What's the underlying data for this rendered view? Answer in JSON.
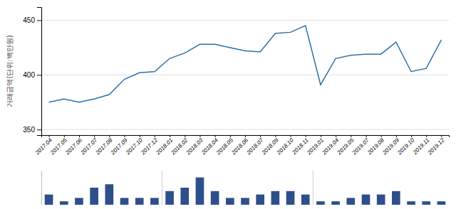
{
  "chart_data": [
    {
      "type": "line",
      "categories": [
        "2017.04",
        "2017.05",
        "2017.06",
        "2017.07",
        "2017.08",
        "2017.09",
        "2017.10",
        "2017.12",
        "2018.01",
        "2018.02",
        "2018.03",
        "2018.04",
        "2018.05",
        "2018.06",
        "2018.07",
        "2018.09",
        "2018.10",
        "2018.11",
        "2019.01",
        "2019.04",
        "2019.05",
        "2019.07",
        "2019.08",
        "2019.09",
        "2019.10",
        "2019.11",
        "2019.12"
      ],
      "values": [
        375,
        378,
        375,
        378,
        382,
        396,
        402,
        403,
        415,
        420,
        428,
        428,
        425,
        422,
        421,
        438,
        439,
        445,
        391,
        415,
        418,
        419,
        419,
        430,
        403,
        406,
        432
      ],
      "color": "#3070a8",
      "y_label": "거래금액(단위:백만원)",
      "ylim": [
        345,
        462
      ],
      "yticks": [
        350,
        400,
        450
      ],
      "grid": true
    },
    {
      "type": "bar",
      "categories": [
        "2017.04",
        "2017.05",
        "2017.06",
        "2017.07",
        "2017.08",
        "2017.09",
        "2017.10",
        "2017.12",
        "2018.01",
        "2018.02",
        "2018.03",
        "2018.04",
        "2018.05",
        "2018.06",
        "2018.07",
        "2018.09",
        "2018.10",
        "2018.11",
        "2019.01",
        "2019.04",
        "2019.05",
        "2019.07",
        "2019.08",
        "2019.09",
        "2019.10",
        "2019.11",
        "2019.12"
      ],
      "values": [
        3,
        1,
        2,
        5,
        6,
        2,
        2,
        2,
        4,
        5,
        8,
        4,
        2,
        2,
        3,
        4,
        4,
        3,
        1,
        1,
        2,
        3,
        3,
        4,
        1,
        1,
        1
      ],
      "color": "#2e4f8a",
      "ylim": [
        0,
        10
      ],
      "tick_labels": false
    }
  ]
}
